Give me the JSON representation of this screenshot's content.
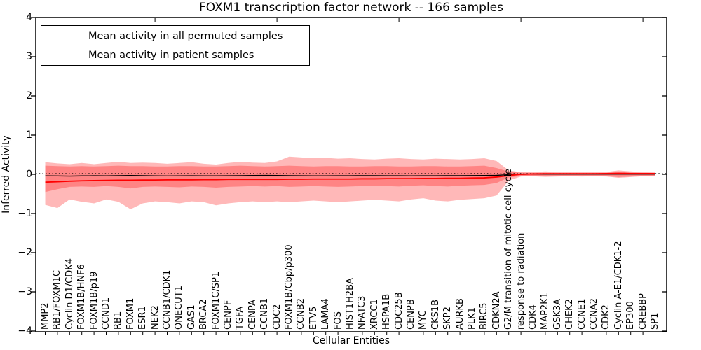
{
  "title": "FOXM1 transcription factor network -- 166 samples",
  "axes": {
    "xlabel": "Cellular Entities",
    "ylabel": "Inferred Activity"
  },
  "legend": {
    "items": [
      {
        "label": "Mean activity in all permuted samples",
        "color": "#000000"
      },
      {
        "label": "Mean activity in patient samples",
        "color": "#ff0000"
      }
    ]
  },
  "chart_data": {
    "type": "line",
    "title": "FOXM1 transcription factor network -- 166 samples",
    "xlabel": "Cellular Entities",
    "ylabel": "Inferred Activity",
    "ylim": [
      -4,
      4
    ],
    "grid": false,
    "legend_position": "upper left",
    "ytick_labels": [
      "4",
      "3",
      "2",
      "1",
      "0",
      "−1",
      "−2",
      "−3",
      "−4"
    ],
    "ytick_values": [
      4,
      3,
      2,
      1,
      0,
      -1,
      -2,
      -3,
      -4
    ],
    "reference_line": {
      "y": 0,
      "style": "dotted",
      "color": "#000000"
    },
    "band_color": "#ff0000",
    "band_opacity": 0.28,
    "categories": [
      "MMP2",
      "RB1/FOXM1C",
      "Cyclin D1/CDK4",
      "FOXM1B/HNF6",
      "FOXM1B/p19",
      "CCND1",
      "RB1",
      "FOXM1",
      "ESR1",
      "NEK2",
      "CCNB1/CDK1",
      "ONECUT1",
      "GAS1",
      "BRCA2",
      "FOXM1C/SP1",
      "CENPF",
      "TGFA",
      "CENPA",
      "CCNB1",
      "CDC2",
      "FOXM1B/Cbp/p300",
      "CCNB2",
      "ETV5",
      "LAMA4",
      "FOS",
      "HIST1H2BA",
      "NFATC3",
      "XRCC1",
      "HSPA1B",
      "CDC25B",
      "CENPB",
      "MYC",
      "CKS1B",
      "SKP2",
      "AURKB",
      "PLK1",
      "BIRC5",
      "CDKN2A",
      "G2/M transition of mitotic cell cycle",
      "response to radiation",
      "CDK4",
      "MAP2K1",
      "GSK3A",
      "CHEK2",
      "CCNE1",
      "CCNA2",
      "CDK2",
      "Cyclin A-E1/CDK1-2",
      "EP300",
      "CREBBP",
      "SP1"
    ],
    "series": [
      {
        "name": "Mean activity in all permuted samples",
        "color": "#000000",
        "values": [
          -0.04,
          -0.042,
          -0.045,
          -0.04,
          -0.038,
          -0.04,
          -0.035,
          -0.03,
          -0.035,
          -0.04,
          -0.042,
          -0.04,
          -0.038,
          -0.04,
          -0.04,
          -0.038,
          -0.035,
          -0.03,
          -0.028,
          -0.03,
          -0.035,
          -0.038,
          -0.04,
          -0.04,
          -0.038,
          -0.036,
          -0.035,
          -0.035,
          -0.036,
          -0.038,
          -0.04,
          -0.038,
          -0.036,
          -0.035,
          -0.034,
          -0.033,
          -0.03,
          -0.025,
          -0.01,
          0.0,
          0.005,
          0.005,
          0.005,
          0.005,
          0.005,
          0.005,
          0.005,
          0.005,
          0.005,
          0.005,
          0.005
        ]
      },
      {
        "name": "Mean activity in patient samples",
        "color": "#ff0000",
        "values": [
          -0.2,
          -0.19,
          -0.175,
          -0.165,
          -0.16,
          -0.155,
          -0.15,
          -0.15,
          -0.145,
          -0.145,
          -0.14,
          -0.14,
          -0.14,
          -0.135,
          -0.135,
          -0.13,
          -0.13,
          -0.13,
          -0.13,
          -0.13,
          -0.125,
          -0.125,
          -0.12,
          -0.12,
          -0.12,
          -0.12,
          -0.115,
          -0.115,
          -0.11,
          -0.11,
          -0.11,
          -0.105,
          -0.105,
          -0.1,
          -0.1,
          -0.095,
          -0.09,
          -0.07,
          -0.03,
          0.0,
          0.01,
          0.015,
          0.015,
          0.015,
          0.015,
          0.015,
          0.02,
          0.025,
          0.02,
          0.02,
          0.02
        ]
      }
    ],
    "bands": [
      {
        "name": "permuted-samples-std-band",
        "upper": [
          0.22,
          0.21,
          0.2,
          0.21,
          0.2,
          0.21,
          0.22,
          0.21,
          0.21,
          0.2,
          0.2,
          0.21,
          0.21,
          0.2,
          0.2,
          0.21,
          0.22,
          0.21,
          0.2,
          0.21,
          0.22,
          0.21,
          0.2,
          0.21,
          0.21,
          0.2,
          0.2,
          0.21,
          0.21,
          0.2,
          0.2,
          0.21,
          0.21,
          0.2,
          0.2,
          0.21,
          0.22,
          0.16,
          0.07,
          0.04,
          0.035,
          0.04,
          0.035,
          0.035,
          0.035,
          0.035,
          0.035,
          0.06,
          0.045,
          0.035,
          0.03
        ],
        "lower": [
          -0.45,
          -0.38,
          -0.32,
          -0.31,
          -0.32,
          -0.3,
          -0.32,
          -0.36,
          -0.32,
          -0.31,
          -0.32,
          -0.33,
          -0.31,
          -0.32,
          -0.34,
          -0.32,
          -0.31,
          -0.3,
          -0.31,
          -0.3,
          -0.32,
          -0.31,
          -0.3,
          -0.31,
          -0.32,
          -0.31,
          -0.3,
          -0.29,
          -0.3,
          -0.31,
          -0.29,
          -0.28,
          -0.3,
          -0.31,
          -0.29,
          -0.28,
          -0.27,
          -0.22,
          -0.08,
          -0.045,
          -0.04,
          -0.05,
          -0.045,
          -0.04,
          -0.045,
          -0.04,
          -0.045,
          -0.07,
          -0.055,
          -0.04,
          -0.035
        ]
      },
      {
        "name": "patient-samples-std-band",
        "upper": [
          0.31,
          0.28,
          0.26,
          0.29,
          0.26,
          0.29,
          0.32,
          0.29,
          0.3,
          0.29,
          0.27,
          0.29,
          0.31,
          0.27,
          0.25,
          0.29,
          0.32,
          0.3,
          0.29,
          0.33,
          0.45,
          0.43,
          0.41,
          0.42,
          0.4,
          0.41,
          0.39,
          0.38,
          0.4,
          0.41,
          0.39,
          0.38,
          0.4,
          0.39,
          0.38,
          0.39,
          0.41,
          0.34,
          0.1,
          0.055,
          0.06,
          0.075,
          0.06,
          0.055,
          0.06,
          0.055,
          0.06,
          0.1,
          0.075,
          0.055,
          0.05
        ],
        "lower": [
          -0.78,
          -0.86,
          -0.64,
          -0.7,
          -0.74,
          -0.64,
          -0.7,
          -0.89,
          -0.74,
          -0.69,
          -0.71,
          -0.74,
          -0.69,
          -0.71,
          -0.79,
          -0.74,
          -0.71,
          -0.69,
          -0.71,
          -0.69,
          -0.71,
          -0.69,
          -0.67,
          -0.69,
          -0.71,
          -0.69,
          -0.67,
          -0.65,
          -0.67,
          -0.69,
          -0.64,
          -0.61,
          -0.67,
          -0.69,
          -0.65,
          -0.63,
          -0.61,
          -0.54,
          -0.16,
          -0.055,
          -0.05,
          -0.065,
          -0.055,
          -0.05,
          -0.055,
          -0.05,
          -0.055,
          -0.09,
          -0.07,
          -0.05,
          -0.04
        ]
      }
    ]
  }
}
